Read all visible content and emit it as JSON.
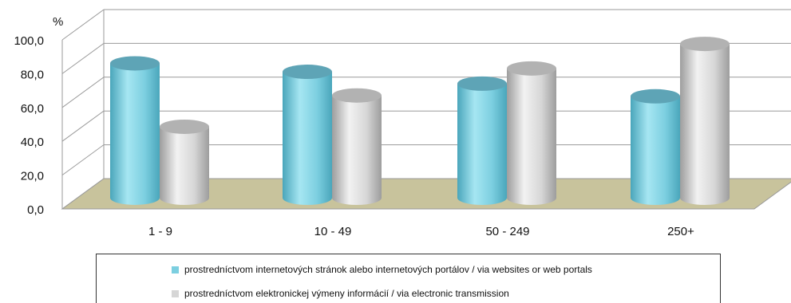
{
  "chart_data": {
    "type": "bar",
    "unit_label": "%",
    "categories": [
      "1 - 9",
      "10 - 49",
      "50 - 249",
      "250+"
    ],
    "series": [
      {
        "name": "prostredníctvom internetových stránok alebo internetových portálov / via websites or web portals",
        "color": "#7ccfe0",
        "values": [
          79.5,
          74.5,
          67.5,
          60.0
        ]
      },
      {
        "name": "prostredníctvom elektronickej výmeny informácií / via electronic transmission",
        "color": "#d6d6d6",
        "values": [
          42.0,
          60.5,
          76.5,
          91.0
        ]
      }
    ],
    "ylim": [
      0,
      100
    ],
    "yticks": [
      "0,0",
      "20,0",
      "40,0",
      "60,0",
      "80,0",
      "100,0"
    ],
    "floor_color": "#c8c39c",
    "grid": true,
    "legend_position": "bottom"
  }
}
